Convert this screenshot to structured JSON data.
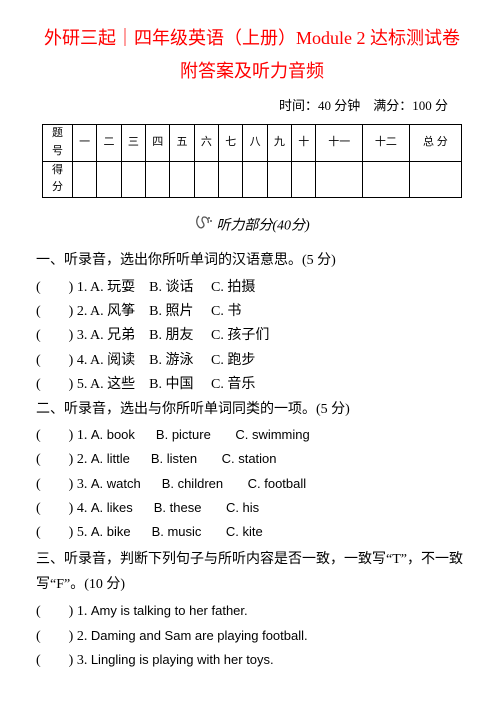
{
  "title": "外研三起｜四年级英语（上册）Module 2 达标测试卷",
  "subtitle": "附答案及听力音频",
  "meta": "时间：40 分钟　满分：100 分",
  "scoreTable": {
    "rowLabels": [
      "题　号",
      "得　分"
    ],
    "cols": [
      "一",
      "二",
      "三",
      "四",
      "五",
      "六",
      "七",
      "八",
      "九",
      "十",
      "十一",
      "十二",
      "总 分"
    ]
  },
  "audioHeader": "听力部分",
  "audioPoints": "(40分)",
  "section1": {
    "title": "一、听录音，选出你所听单词的汉语意思。(5 分)",
    "items": [
      {
        "n": "1",
        "a": "玩耍",
        "b": "谈话",
        "c": "拍摄"
      },
      {
        "n": "2",
        "a": "风筝",
        "b": "照片",
        "c": "书"
      },
      {
        "n": "3",
        "a": "兄弟",
        "b": "朋友",
        "c": "孩子们"
      },
      {
        "n": "4",
        "a": "阅读",
        "b": "游泳",
        "c": "跑步"
      },
      {
        "n": "5",
        "a": "这些",
        "b": "中国",
        "c": "音乐"
      }
    ]
  },
  "section2": {
    "title": "二、听录音，选出与你所听单词同类的一项。(5 分)",
    "items": [
      {
        "n": "1",
        "a": "book",
        "b": "picture",
        "c": "swimming"
      },
      {
        "n": "2",
        "a": "little",
        "b": "listen",
        "c": "station"
      },
      {
        "n": "3",
        "a": "watch",
        "b": "children",
        "c": "football"
      },
      {
        "n": "4",
        "a": "likes",
        "b": "these",
        "c": "his"
      },
      {
        "n": "5",
        "a": "bike",
        "b": "music",
        "c": "kite"
      }
    ]
  },
  "section3": {
    "title": "三、听录音，判断下列句子与所听内容是否一致，一致写“T”，不一致写“F”。(10 分)",
    "items": [
      {
        "n": "1",
        "t": "Amy is talking to her father."
      },
      {
        "n": "2",
        "t": "Daming and Sam are playing football."
      },
      {
        "n": "3",
        "t": "Lingling is playing with her toys."
      }
    ]
  }
}
